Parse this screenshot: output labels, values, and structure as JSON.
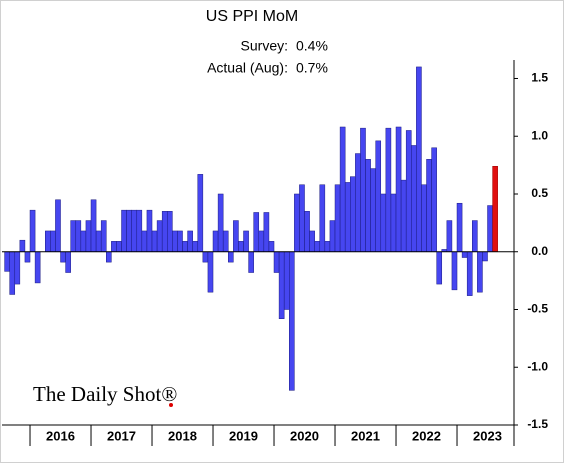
{
  "chart_data": {
    "type": "bar",
    "title": "US PPI MoM",
    "annotations": [
      {
        "label": "Survey:",
        "value": "0.4%"
      },
      {
        "label": "Actual (Aug):",
        "value": "0.7%"
      }
    ],
    "watermark": "The Daily Shot®",
    "categories": [
      null,
      null,
      null,
      null,
      null,
      "2016",
      null,
      null,
      null,
      null,
      null,
      null,
      null,
      null,
      null,
      null,
      null,
      "2017",
      null,
      null,
      null,
      null,
      null,
      null,
      null,
      null,
      null,
      null,
      null,
      "2018",
      null,
      null,
      null,
      null,
      null,
      null,
      null,
      null,
      null,
      null,
      null,
      "2019",
      null,
      null,
      null,
      null,
      null,
      null,
      null,
      null,
      null,
      null,
      null,
      "2020",
      null,
      null,
      null,
      null,
      null,
      null,
      null,
      null,
      null,
      null,
      null,
      "2021",
      null,
      null,
      null,
      null,
      null,
      null,
      null,
      null,
      null,
      null,
      null,
      "2022",
      null,
      null,
      null,
      null,
      null,
      null,
      null,
      null,
      null,
      null,
      null,
      "2023",
      null,
      null,
      null,
      null,
      null,
      null,
      null
    ],
    "values": [
      -0.17,
      -0.37,
      -0.28,
      0.1,
      -0.09,
      0.36,
      -0.27,
      0.0,
      0.18,
      0.18,
      0.45,
      -0.09,
      -0.18,
      0.27,
      0.27,
      0.18,
      0.27,
      0.45,
      0.18,
      0.27,
      -0.09,
      0.09,
      0.09,
      0.36,
      0.36,
      0.36,
      0.36,
      0.18,
      0.36,
      0.18,
      0.27,
      0.35,
      0.35,
      0.18,
      0.18,
      0.09,
      0.18,
      0.09,
      0.67,
      -0.09,
      -0.35,
      0.18,
      0.5,
      0.18,
      -0.09,
      0.27,
      0.09,
      0.18,
      -0.18,
      0.34,
      0.18,
      0.34,
      0.09,
      -0.18,
      -0.58,
      -0.5,
      -1.2,
      0.5,
      0.58,
      0.35,
      0.18,
      0.09,
      0.58,
      0.09,
      0.27,
      0.58,
      1.08,
      0.6,
      0.65,
      0.85,
      1.07,
      0.8,
      0.72,
      0.96,
      0.5,
      1.07,
      0.5,
      1.08,
      0.62,
      1.05,
      0.92,
      1.6,
      0.58,
      0.8,
      0.9,
      -0.28,
      0.02,
      0.27,
      -0.33,
      0.42,
      -0.05,
      -0.38,
      0.27,
      -0.35,
      -0.08,
      0.4,
      0.74
    ],
    "color": "#4646f0",
    "last_color": "#e01010",
    "ylim": [
      -1.5,
      1.66
    ],
    "yticks": [
      1.5,
      {
        "value": 1.0,
        "label": "1.0"
      },
      0.5,
      {
        "value": 0.0,
        "label": "0.0"
      },
      -0.5,
      {
        "value": -1.0,
        "label": "-1.0"
      },
      -1.5
    ]
  }
}
